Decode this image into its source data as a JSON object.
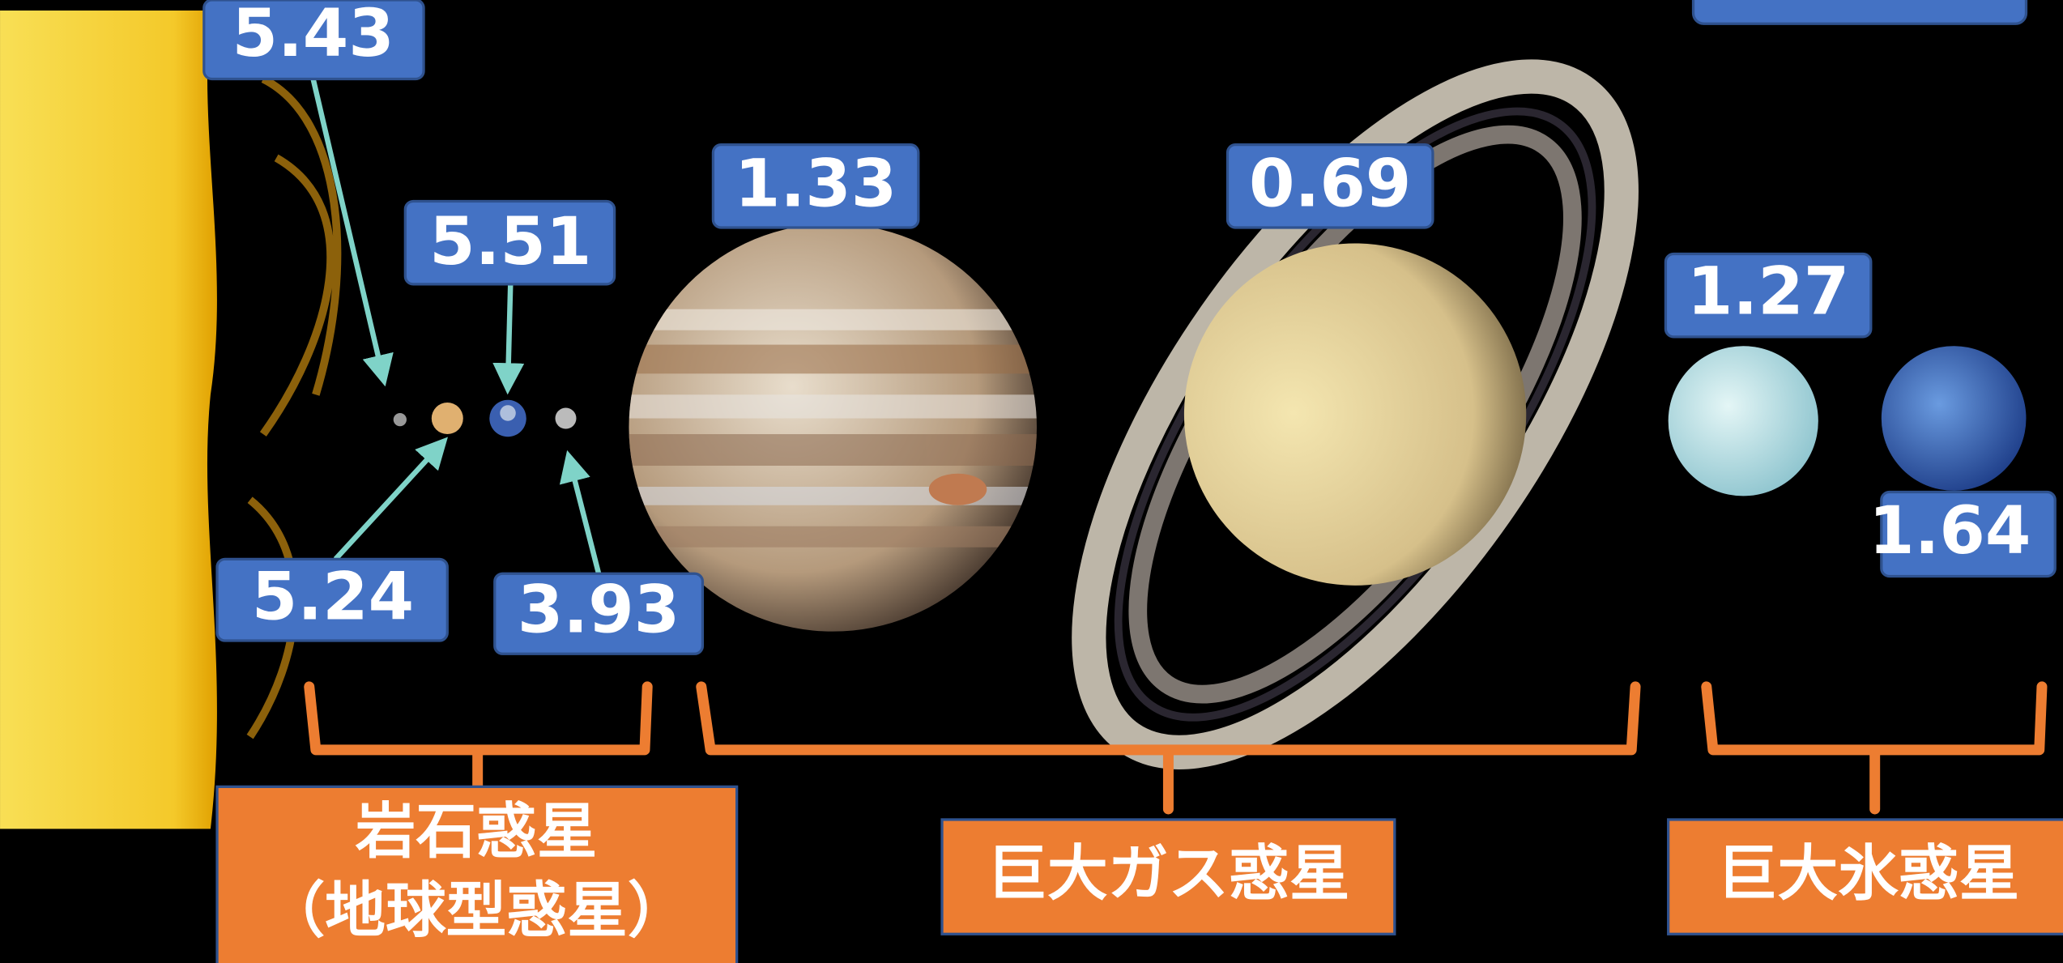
{
  "labels": [
    {
      "name": "sun",
      "text": "5.43"
    },
    {
      "name": "earth",
      "text": "5.51"
    },
    {
      "name": "venus",
      "text": "5.24"
    },
    {
      "name": "mars",
      "text": "3.93"
    },
    {
      "name": "jupiter",
      "text": "1.33"
    },
    {
      "name": "saturn",
      "text": "0.69"
    },
    {
      "name": "uranus",
      "text": "1.27"
    },
    {
      "name": "neptune",
      "text": "1.64"
    }
  ],
  "groups": [
    {
      "lines": [
        "岩石惑星",
        "（地球型惑星）"
      ]
    },
    {
      "lines": [
        "巨大ガス惑星"
      ]
    },
    {
      "lines": [
        "巨大氷惑星"
      ]
    }
  ]
}
